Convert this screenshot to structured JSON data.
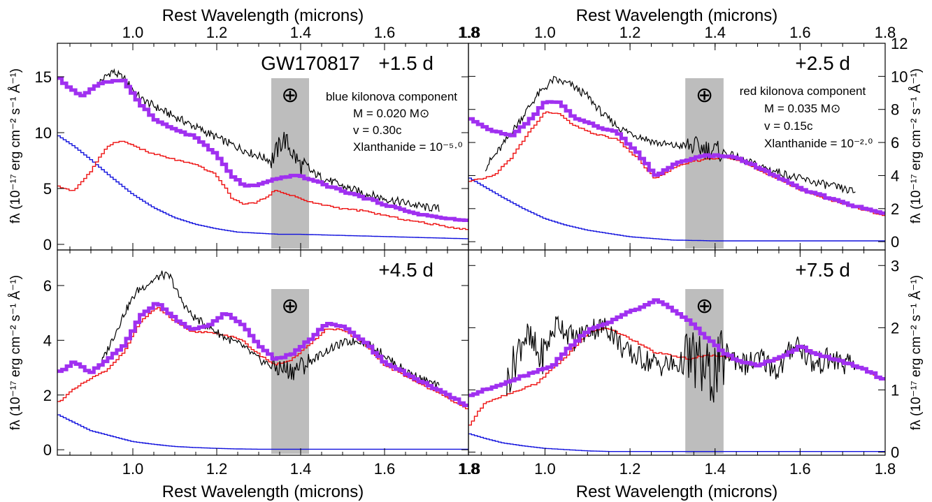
{
  "figure": {
    "top_axis_label": "Rest Wavelength (microns)",
    "bottom_axis_label": "Rest Wavelength (microns)",
    "ylabel_left": "fλ (10⁻¹⁷ erg cm⁻² s⁻¹ Å⁻¹)",
    "ylabel_right": "fλ (10⁻¹⁷ erg cm⁻² s⁻¹ Å⁻¹)",
    "telluric_symbol": "⊕",
    "colors": {
      "observed": "#000000",
      "blue_component": "#1010dd",
      "red_component": "#ee1111",
      "combined_model": "#a030f0",
      "telluric_band": "#bdbdbd"
    },
    "blue_component": {
      "title": "blue kilonova component",
      "mass": "M = 0.020 M⊙",
      "velocity": "v  = 0.30c",
      "lanthanide": "Xlanthanide = 10⁻⁵·⁰"
    },
    "red_component": {
      "title": "red kilonova component",
      "mass": "M = 0.035 M⊙",
      "velocity": "v  = 0.15c",
      "lanthanide": "Xlanthanide = 10⁻²·⁰"
    }
  },
  "chart_data": [
    {
      "type": "line",
      "panel": "top-left",
      "event_label": "GW170817",
      "epoch_label": "+1.5 d",
      "xlim": [
        0.82,
        1.8
      ],
      "ylim": [
        -0.5,
        18
      ],
      "x_ticks": [
        "1.0",
        "1.2",
        "1.4",
        "1.6",
        "1.8"
      ],
      "y_ticks": [
        "0",
        "5",
        "10",
        "15"
      ],
      "telluric_band": [
        1.33,
        1.42
      ],
      "series": [
        {
          "role": "observed",
          "x": [
            0.92,
            0.95,
            0.98,
            1.02,
            1.08,
            1.15,
            1.22,
            1.28,
            1.33,
            1.36,
            1.4,
            1.45,
            1.5,
            1.55,
            1.6,
            1.65,
            1.7,
            1.73
          ],
          "y": [
            14.5,
            15.5,
            14.8,
            13.0,
            11.8,
            10.5,
            9.2,
            8.2,
            7.5,
            9.5,
            7.0,
            6.0,
            5.2,
            4.6,
            4.1,
            3.7,
            3.3,
            3.2
          ]
        },
        {
          "role": "combined_model",
          "x": [
            0.82,
            0.85,
            0.88,
            0.92,
            0.95,
            0.98,
            1.02,
            1.06,
            1.1,
            1.15,
            1.2,
            1.24,
            1.27,
            1.3,
            1.34,
            1.38,
            1.42,
            1.46,
            1.5,
            1.55,
            1.6,
            1.65,
            1.7,
            1.75,
            1.8
          ],
          "y": [
            15.0,
            14.0,
            13.3,
            14.4,
            14.6,
            14.6,
            12.5,
            11.0,
            10.3,
            9.6,
            8.0,
            6.0,
            5.2,
            5.3,
            5.8,
            6.2,
            5.9,
            5.3,
            4.8,
            4.2,
            3.6,
            3.0,
            2.6,
            2.3,
            2.1
          ]
        },
        {
          "role": "red_component",
          "x": [
            0.82,
            0.86,
            0.9,
            0.94,
            0.97,
            1.0,
            1.04,
            1.08,
            1.12,
            1.16,
            1.2,
            1.24,
            1.27,
            1.3,
            1.34,
            1.38,
            1.42,
            1.46,
            1.5,
            1.55,
            1.6,
            1.65,
            1.7,
            1.75,
            1.8
          ],
          "y": [
            5.2,
            4.8,
            6.5,
            8.8,
            9.3,
            8.9,
            8.2,
            7.8,
            7.4,
            7.0,
            6.2,
            4.0,
            3.6,
            3.8,
            4.8,
            4.4,
            3.8,
            3.5,
            3.2,
            3.0,
            2.6,
            2.2,
            1.9,
            1.6,
            1.3
          ]
        },
        {
          "role": "blue_component",
          "x": [
            0.82,
            0.86,
            0.9,
            0.95,
            1.0,
            1.05,
            1.1,
            1.15,
            1.2,
            1.25,
            1.3,
            1.35,
            1.4,
            1.5,
            1.6,
            1.7,
            1.8
          ],
          "y": [
            9.8,
            8.8,
            7.6,
            6.0,
            4.5,
            3.3,
            2.4,
            1.8,
            1.4,
            1.1,
            1.0,
            0.9,
            0.9,
            0.8,
            0.7,
            0.6,
            0.5
          ]
        }
      ]
    },
    {
      "type": "line",
      "panel": "top-right",
      "epoch_label": "+2.5 d",
      "xlim": [
        0.82,
        1.8
      ],
      "ylim": [
        -0.5,
        12
      ],
      "x_ticks": [
        "1.0",
        "1.2",
        "1.4",
        "1.6",
        "1.8"
      ],
      "y_ticks": [
        "0",
        "2",
        "4",
        "6",
        "8",
        "10",
        "12"
      ],
      "telluric_band": [
        1.33,
        1.42
      ],
      "series": [
        {
          "role": "observed",
          "x": [
            0.86,
            0.9,
            0.94,
            0.98,
            1.02,
            1.06,
            1.1,
            1.14,
            1.18,
            1.22,
            1.26,
            1.3,
            1.34,
            1.38,
            1.42,
            1.46,
            1.5,
            1.55,
            1.6,
            1.65,
            1.7,
            1.73
          ],
          "y": [
            4.5,
            5.8,
            7.3,
            8.8,
            9.8,
            9.5,
            8.8,
            7.6,
            6.8,
            6.4,
            6.0,
            5.8,
            5.8,
            5.6,
            5.4,
            5.0,
            4.6,
            4.2,
            3.8,
            3.5,
            3.2,
            3.0
          ]
        },
        {
          "role": "combined_model",
          "x": [
            0.82,
            0.85,
            0.88,
            0.92,
            0.96,
            1.0,
            1.03,
            1.07,
            1.12,
            1.17,
            1.22,
            1.26,
            1.3,
            1.34,
            1.38,
            1.42,
            1.46,
            1.5,
            1.55,
            1.6,
            1.65,
            1.7,
            1.75,
            1.8
          ],
          "y": [
            7.5,
            7.0,
            6.7,
            6.4,
            7.2,
            8.4,
            8.5,
            7.5,
            7.0,
            6.6,
            5.3,
            4.0,
            4.6,
            5.0,
            5.2,
            5.2,
            5.0,
            4.5,
            3.9,
            3.2,
            2.8,
            2.4,
            2.0,
            1.7
          ]
        },
        {
          "role": "red_component",
          "x": [
            0.82,
            0.85,
            0.88,
            0.92,
            0.96,
            1.0,
            1.03,
            1.07,
            1.12,
            1.17,
            1.22,
            1.26,
            1.3,
            1.34,
            1.38,
            1.42,
            1.46,
            1.5,
            1.55,
            1.6,
            1.65,
            1.7,
            1.75,
            1.8
          ],
          "y": [
            3.6,
            3.8,
            4.0,
            5.0,
            6.5,
            7.8,
            7.8,
            7.0,
            6.5,
            6.2,
            5.0,
            3.8,
            4.4,
            4.8,
            5.0,
            5.1,
            4.9,
            4.4,
            3.8,
            3.1,
            2.7,
            2.3,
            1.9,
            1.6
          ]
        },
        {
          "role": "blue_component",
          "x": [
            0.82,
            0.86,
            0.9,
            0.95,
            1.0,
            1.05,
            1.1,
            1.15,
            1.2,
            1.25,
            1.3,
            1.4,
            1.5,
            1.6,
            1.7,
            1.8
          ],
          "y": [
            3.9,
            3.3,
            2.7,
            2.0,
            1.4,
            1.0,
            0.7,
            0.5,
            0.3,
            0.2,
            0.1,
            0.05,
            0.05,
            0.05,
            0.05,
            0.05
          ]
        }
      ]
    },
    {
      "type": "line",
      "panel": "bottom-left",
      "epoch_label": "+4.5 d",
      "xlim": [
        0.82,
        1.8
      ],
      "ylim": [
        -0.2,
        7.3
      ],
      "x_ticks": [
        "1.0",
        "1.2",
        "1.4",
        "1.6",
        "1.8"
      ],
      "y_ticks": [
        "0",
        "2",
        "4",
        "6"
      ],
      "telluric_band": [
        1.33,
        1.42
      ],
      "series": [
        {
          "role": "observed",
          "x": [
            0.92,
            0.95,
            0.98,
            1.01,
            1.04,
            1.07,
            1.09,
            1.11,
            1.14,
            1.18,
            1.22,
            1.26,
            1.3,
            1.34,
            1.38,
            1.42,
            1.46,
            1.5,
            1.54,
            1.58,
            1.62,
            1.66,
            1.7,
            1.73
          ],
          "y": [
            3.0,
            4.0,
            5.0,
            5.8,
            6.1,
            6.4,
            6.3,
            5.6,
            4.9,
            4.5,
            4.1,
            3.8,
            3.3,
            3.0,
            2.9,
            3.2,
            3.6,
            3.9,
            4.0,
            3.7,
            3.2,
            2.8,
            2.5,
            2.3
          ]
        },
        {
          "role": "combined_model",
          "x": [
            0.82,
            0.86,
            0.9,
            0.94,
            0.98,
            1.02,
            1.06,
            1.1,
            1.14,
            1.18,
            1.22,
            1.26,
            1.3,
            1.34,
            1.38,
            1.42,
            1.46,
            1.5,
            1.55,
            1.6,
            1.65,
            1.7,
            1.75,
            1.8
          ],
          "y": [
            2.8,
            3.2,
            2.8,
            3.3,
            3.8,
            4.9,
            5.4,
            4.8,
            4.4,
            4.5,
            5.0,
            4.6,
            3.8,
            3.3,
            3.5,
            4.0,
            4.6,
            4.5,
            4.0,
            3.2,
            2.8,
            2.4,
            2.0,
            1.6
          ]
        },
        {
          "role": "red_component",
          "x": [
            0.82,
            0.86,
            0.9,
            0.94,
            0.98,
            1.02,
            1.06,
            1.1,
            1.14,
            1.18,
            1.22,
            1.26,
            1.3,
            1.34,
            1.38,
            1.42,
            1.46,
            1.5,
            1.55,
            1.6,
            1.65,
            1.7,
            1.75,
            1.8
          ],
          "y": [
            1.7,
            2.2,
            2.6,
            2.9,
            3.6,
            4.7,
            5.2,
            4.7,
            4.3,
            4.3,
            4.2,
            4.0,
            3.5,
            3.1,
            3.3,
            3.8,
            4.4,
            4.4,
            3.9,
            3.1,
            2.7,
            2.3,
            1.9,
            1.5
          ]
        },
        {
          "role": "blue_component",
          "x": [
            0.82,
            0.86,
            0.9,
            0.95,
            1.0,
            1.05,
            1.1,
            1.15,
            1.2,
            1.25,
            1.3,
            1.4,
            1.5,
            1.6,
            1.7,
            1.8
          ],
          "y": [
            1.3,
            1.0,
            0.7,
            0.5,
            0.3,
            0.2,
            0.12,
            0.08,
            0.05,
            0.03,
            0.02,
            0.02,
            0.02,
            0.02,
            0.02,
            0.02
          ]
        }
      ]
    },
    {
      "type": "line",
      "panel": "bottom-right",
      "epoch_label": "+7.5 d",
      "xlim": [
        0.82,
        1.8
      ],
      "ylim": [
        -0.05,
        3.25
      ],
      "x_ticks": [
        "1.0",
        "1.2",
        "1.4",
        "1.6",
        "1.8"
      ],
      "y_ticks": [
        "0",
        "1",
        "2",
        "3"
      ],
      "telluric_band": [
        1.33,
        1.42
      ],
      "series": [
        {
          "role": "observed",
          "x": [
            0.91,
            0.95,
            0.99,
            1.03,
            1.07,
            1.11,
            1.15,
            1.19,
            1.23,
            1.27,
            1.31,
            1.35,
            1.39,
            1.43,
            1.47,
            1.51,
            1.55,
            1.59,
            1.63,
            1.67,
            1.71,
            1.73
          ],
          "y": [
            1.1,
            1.9,
            1.5,
            2.1,
            1.8,
            2.0,
            2.0,
            1.6,
            1.5,
            1.4,
            1.4,
            1.5,
            1.2,
            1.6,
            1.4,
            1.5,
            1.3,
            1.8,
            1.4,
            1.5,
            1.4,
            1.4
          ]
        },
        {
          "role": "combined_model",
          "x": [
            0.82,
            0.86,
            0.9,
            0.94,
            0.98,
            1.02,
            1.06,
            1.1,
            1.14,
            1.18,
            1.22,
            1.26,
            1.3,
            1.34,
            1.38,
            1.42,
            1.46,
            1.5,
            1.55,
            1.6,
            1.65,
            1.7,
            1.75,
            1.8
          ],
          "y": [
            0.9,
            1.0,
            1.1,
            1.2,
            1.3,
            1.4,
            1.7,
            1.95,
            2.05,
            2.2,
            2.3,
            2.45,
            2.3,
            2.1,
            1.85,
            1.6,
            1.45,
            1.4,
            1.5,
            1.7,
            1.55,
            1.45,
            1.35,
            1.15
          ]
        },
        {
          "role": "red_component",
          "x": [
            0.82,
            0.86,
            0.9,
            0.94,
            0.98,
            1.02,
            1.06,
            1.1,
            1.14,
            1.18,
            1.22,
            1.26,
            1.3,
            1.34,
            1.38,
            1.42,
            1.46,
            1.5,
            1.55,
            1.6,
            1.65,
            1.7,
            1.75,
            1.8
          ],
          "y": [
            0.4,
            0.8,
            0.9,
            1.0,
            1.1,
            1.35,
            1.6,
            1.9,
            2.0,
            1.9,
            1.75,
            1.6,
            1.55,
            1.5,
            1.55,
            1.55,
            1.45,
            1.4,
            1.5,
            1.7,
            1.55,
            1.45,
            1.35,
            1.15
          ]
        },
        {
          "role": "blue_component",
          "x": [
            0.82,
            0.86,
            0.9,
            0.95,
            1.0,
            1.05,
            1.1,
            1.15,
            1.2,
            1.3,
            1.4,
            1.5,
            1.6,
            1.7,
            1.8
          ],
          "y": [
            0.3,
            0.22,
            0.15,
            0.1,
            0.06,
            0.04,
            0.02,
            0.01,
            0.01,
            0.01,
            0.01,
            0.01,
            0.01,
            0.01,
            0.01
          ]
        }
      ]
    }
  ]
}
